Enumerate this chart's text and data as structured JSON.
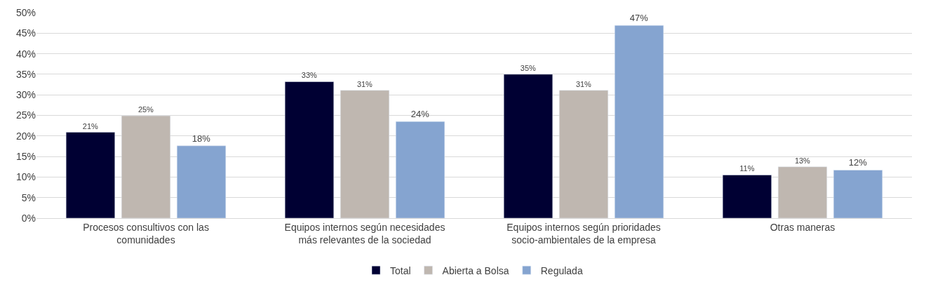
{
  "chart_data": {
    "type": "bar",
    "categories": [
      "Procesos consultivos con las comunidades",
      "Equipos internos según necesidades más relevantes de la sociedad",
      "Equipos internos según prioridades socio-ambientales de la empresa",
      "Otras maneras"
    ],
    "series": [
      {
        "name": "Total",
        "color": "#000033",
        "values": [
          20.9,
          33.2,
          35.0,
          10.5
        ],
        "value_labels": [
          "21%",
          "33%",
          "35%",
          "11%"
        ]
      },
      {
        "name": "Abierta a Bolsa",
        "color": "#bfb7b0",
        "values": [
          24.9,
          31.1,
          31.1,
          12.5
        ],
        "value_labels": [
          "25%",
          "31%",
          "31%",
          "13%"
        ]
      },
      {
        "name": "Regulada",
        "color": "#85a4d0",
        "values": [
          17.6,
          23.5,
          46.9,
          11.7
        ],
        "value_labels": [
          "18%",
          "24%",
          "47%",
          "12%"
        ]
      }
    ],
    "ylim": [
      0,
      50
    ],
    "yticks": [
      {
        "value": 0,
        "label": "0%"
      },
      {
        "value": 5,
        "label": "5%"
      },
      {
        "value": 10,
        "label": "10%"
      },
      {
        "value": 15,
        "label": "15%"
      },
      {
        "value": 20,
        "label": "20%"
      },
      {
        "value": 25,
        "label": "25%"
      },
      {
        "value": 30,
        "label": "30%"
      },
      {
        "value": 35,
        "label": "35%"
      },
      {
        "value": 40,
        "label": "40%"
      },
      {
        "value": 45,
        "label": "45%"
      },
      {
        "value": 50,
        "label": "50%"
      }
    ],
    "grid": "y",
    "legend": "bottom"
  }
}
